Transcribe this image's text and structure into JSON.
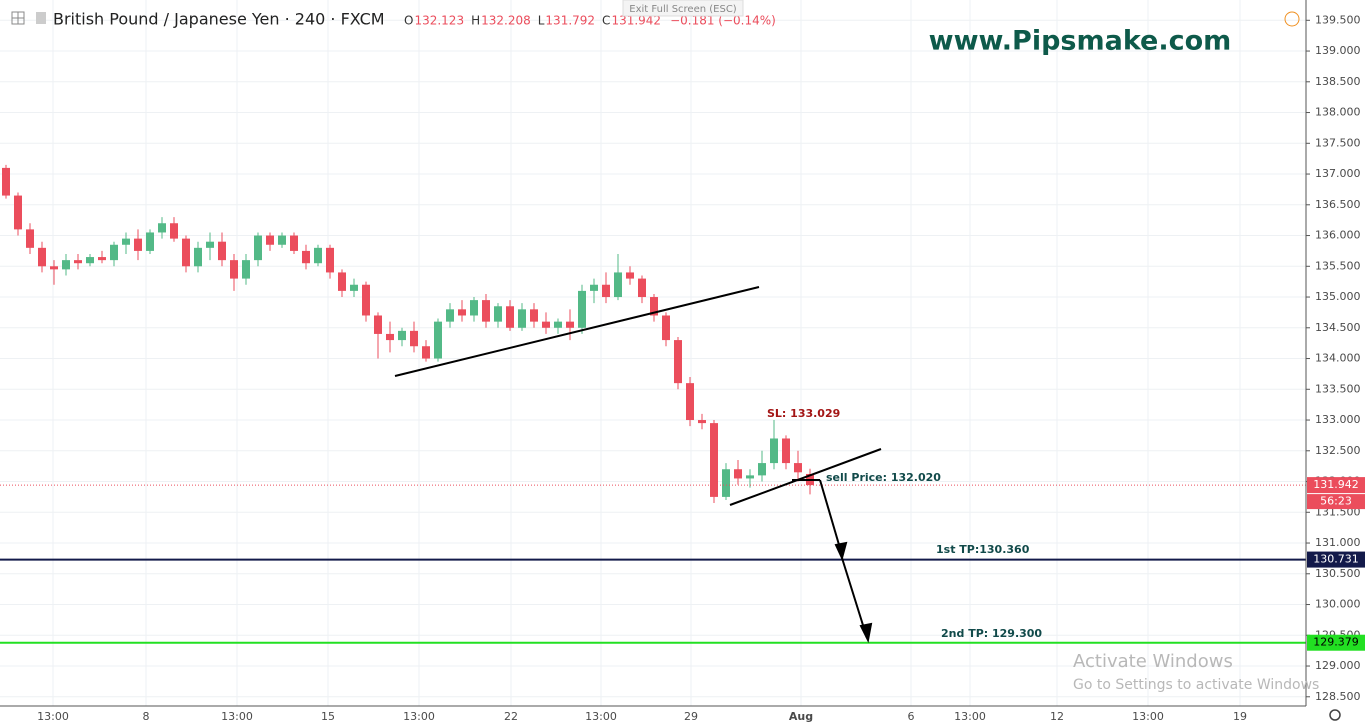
{
  "chart_data": {
    "type": "candlestick",
    "symbol": "British Pound / Japanese Yen · 240 · FXCM",
    "legend": [
      {
        "key": "O",
        "value": 132.123
      },
      {
        "key": "H",
        "value": 132.208
      },
      {
        "key": "L",
        "value": 131.792
      },
      {
        "key": "C",
        "value": 131.942
      }
    ],
    "change": "−0.181 (−0.14%)",
    "up_color": "#53b987",
    "down_color": "#eb4d5c",
    "candles": [
      {
        "o": 137.1,
        "h": 137.15,
        "l": 136.6,
        "c": 136.65
      },
      {
        "o": 136.65,
        "h": 136.7,
        "l": 136.0,
        "c": 136.1
      },
      {
        "o": 136.1,
        "h": 136.2,
        "l": 135.7,
        "c": 135.8
      },
      {
        "o": 135.8,
        "h": 135.9,
        "l": 135.4,
        "c": 135.5
      },
      {
        "o": 135.5,
        "h": 135.6,
        "l": 135.2,
        "c": 135.45
      },
      {
        "o": 135.45,
        "h": 135.7,
        "l": 135.35,
        "c": 135.6
      },
      {
        "o": 135.6,
        "h": 135.7,
        "l": 135.45,
        "c": 135.55
      },
      {
        "o": 135.55,
        "h": 135.7,
        "l": 135.5,
        "c": 135.65
      },
      {
        "o": 135.65,
        "h": 135.75,
        "l": 135.55,
        "c": 135.6
      },
      {
        "o": 135.6,
        "h": 135.9,
        "l": 135.5,
        "c": 135.85
      },
      {
        "o": 135.85,
        "h": 136.05,
        "l": 135.7,
        "c": 135.95
      },
      {
        "o": 135.95,
        "h": 136.1,
        "l": 135.6,
        "c": 135.75
      },
      {
        "o": 135.75,
        "h": 136.1,
        "l": 135.7,
        "c": 136.05
      },
      {
        "o": 136.05,
        "h": 136.3,
        "l": 135.95,
        "c": 136.2
      },
      {
        "o": 136.2,
        "h": 136.3,
        "l": 135.9,
        "c": 135.95
      },
      {
        "o": 135.95,
        "h": 136.0,
        "l": 135.4,
        "c": 135.5
      },
      {
        "o": 135.5,
        "h": 135.9,
        "l": 135.4,
        "c": 135.8
      },
      {
        "o": 135.8,
        "h": 136.05,
        "l": 135.6,
        "c": 135.9
      },
      {
        "o": 135.9,
        "h": 136.05,
        "l": 135.5,
        "c": 135.6
      },
      {
        "o": 135.6,
        "h": 135.7,
        "l": 135.1,
        "c": 135.3
      },
      {
        "o": 135.3,
        "h": 135.7,
        "l": 135.2,
        "c": 135.6
      },
      {
        "o": 135.6,
        "h": 136.05,
        "l": 135.5,
        "c": 136.0
      },
      {
        "o": 136.0,
        "h": 136.05,
        "l": 135.75,
        "c": 135.85
      },
      {
        "o": 135.85,
        "h": 136.05,
        "l": 135.8,
        "c": 136.0
      },
      {
        "o": 136.0,
        "h": 136.05,
        "l": 135.7,
        "c": 135.75
      },
      {
        "o": 135.75,
        "h": 135.85,
        "l": 135.45,
        "c": 135.55
      },
      {
        "o": 135.55,
        "h": 135.85,
        "l": 135.5,
        "c": 135.8
      },
      {
        "o": 135.8,
        "h": 135.85,
        "l": 135.3,
        "c": 135.4
      },
      {
        "o": 135.4,
        "h": 135.45,
        "l": 135.0,
        "c": 135.1
      },
      {
        "o": 135.1,
        "h": 135.3,
        "l": 135.0,
        "c": 135.2
      },
      {
        "o": 135.2,
        "h": 135.25,
        "l": 134.6,
        "c": 134.7
      },
      {
        "o": 134.7,
        "h": 134.75,
        "l": 134.0,
        "c": 134.4
      },
      {
        "o": 134.4,
        "h": 134.6,
        "l": 134.1,
        "c": 134.3
      },
      {
        "o": 134.3,
        "h": 134.5,
        "l": 134.2,
        "c": 134.45
      },
      {
        "o": 134.45,
        "h": 134.6,
        "l": 134.1,
        "c": 134.2
      },
      {
        "o": 134.2,
        "h": 134.3,
        "l": 133.95,
        "c": 134.0
      },
      {
        "o": 134.0,
        "h": 134.65,
        "l": 133.95,
        "c": 134.6
      },
      {
        "o": 134.6,
        "h": 134.9,
        "l": 134.5,
        "c": 134.8
      },
      {
        "o": 134.8,
        "h": 134.95,
        "l": 134.6,
        "c": 134.7
      },
      {
        "o": 134.7,
        "h": 135.0,
        "l": 134.6,
        "c": 134.95
      },
      {
        "o": 134.95,
        "h": 135.05,
        "l": 134.5,
        "c": 134.6
      },
      {
        "o": 134.6,
        "h": 134.9,
        "l": 134.5,
        "c": 134.85
      },
      {
        "o": 134.85,
        "h": 134.95,
        "l": 134.45,
        "c": 134.5
      },
      {
        "o": 134.5,
        "h": 134.9,
        "l": 134.45,
        "c": 134.8
      },
      {
        "o": 134.8,
        "h": 134.9,
        "l": 134.5,
        "c": 134.6
      },
      {
        "o": 134.6,
        "h": 134.75,
        "l": 134.4,
        "c": 134.5
      },
      {
        "o": 134.5,
        "h": 134.65,
        "l": 134.4,
        "c": 134.6
      },
      {
        "o": 134.6,
        "h": 134.8,
        "l": 134.3,
        "c": 134.5
      },
      {
        "o": 134.5,
        "h": 135.2,
        "l": 134.4,
        "c": 135.1
      },
      {
        "o": 135.1,
        "h": 135.3,
        "l": 134.9,
        "c": 135.2
      },
      {
        "o": 135.2,
        "h": 135.4,
        "l": 134.9,
        "c": 135.0
      },
      {
        "o": 135.0,
        "h": 135.7,
        "l": 134.95,
        "c": 135.4
      },
      {
        "o": 135.4,
        "h": 135.5,
        "l": 135.2,
        "c": 135.3
      },
      {
        "o": 135.3,
        "h": 135.35,
        "l": 134.9,
        "c": 135.0
      },
      {
        "o": 135.0,
        "h": 135.05,
        "l": 134.6,
        "c": 134.7
      },
      {
        "o": 134.7,
        "h": 134.75,
        "l": 134.2,
        "c": 134.3
      },
      {
        "o": 134.3,
        "h": 134.35,
        "l": 133.5,
        "c": 133.6
      },
      {
        "o": 133.6,
        "h": 133.7,
        "l": 132.9,
        "c": 133.0
      },
      {
        "o": 133.0,
        "h": 133.1,
        "l": 132.85,
        "c": 132.95
      },
      {
        "o": 132.95,
        "h": 133.0,
        "l": 131.65,
        "c": 131.75
      },
      {
        "o": 131.75,
        "h": 132.3,
        "l": 131.7,
        "c": 132.2
      },
      {
        "o": 132.2,
        "h": 132.35,
        "l": 131.95,
        "c": 132.05
      },
      {
        "o": 132.05,
        "h": 132.2,
        "l": 131.9,
        "c": 132.1
      },
      {
        "o": 132.1,
        "h": 132.5,
        "l": 132.0,
        "c": 132.3
      },
      {
        "o": 132.3,
        "h": 133.0,
        "l": 132.2,
        "c": 132.7
      },
      {
        "o": 132.7,
        "h": 132.75,
        "l": 132.2,
        "c": 132.3
      },
      {
        "o": 132.3,
        "h": 132.5,
        "l": 132.0,
        "c": 132.15
      },
      {
        "o": 132.123,
        "h": 132.208,
        "l": 131.792,
        "c": 131.942
      }
    ],
    "ylim": [
      128.35,
      139.83
    ],
    "yticks": [
      {
        "value": 128.5,
        "label": "128.500"
      },
      {
        "value": 129,
        "label": "129.000"
      },
      {
        "value": 129.5,
        "label": "129.500"
      },
      {
        "value": 130,
        "label": "130.000"
      },
      {
        "value": 130.5,
        "label": "130.500"
      },
      {
        "value": 131,
        "label": "131.000"
      },
      {
        "value": 131.5,
        "label": "131.500"
      },
      {
        "value": 132,
        "label": "132.000"
      },
      {
        "value": 132.5,
        "label": "132.500"
      },
      {
        "value": 133,
        "label": "133.000"
      },
      {
        "value": 133.5,
        "label": "133.500"
      },
      {
        "value": 134,
        "label": "134.000"
      },
      {
        "value": 134.5,
        "label": "134.500"
      },
      {
        "value": 135,
        "label": "135.000"
      },
      {
        "value": 135.5,
        "label": "135.500"
      },
      {
        "value": 136,
        "label": "136.000"
      },
      {
        "value": 136.5,
        "label": "136.500"
      },
      {
        "value": 137,
        "label": "137.000"
      },
      {
        "value": 137.5,
        "label": "137.500"
      },
      {
        "value": 138,
        "label": "138.000"
      },
      {
        "value": 138.5,
        "label": "138.500"
      },
      {
        "value": 139,
        "label": "139.000"
      },
      {
        "value": 139.5,
        "label": "139.500"
      }
    ],
    "xticks": [
      "13:00",
      "8",
      "13:00",
      "15",
      "13:00",
      "22",
      "13:00",
      "29",
      "Aug",
      "6",
      "13:00",
      "12",
      "13:00",
      "19"
    ],
    "grid": true,
    "price_lines": [
      {
        "value": 131.942,
        "color": "#eb4d5c",
        "style": "dotted",
        "timer": "56:23"
      },
      {
        "value": 130.731,
        "color": "#131a4a",
        "style": "solid"
      },
      {
        "value": 129.379,
        "color": "#22e022",
        "style": "solid"
      }
    ],
    "annotations": [
      "SL: 133.029",
      "sell Price: 132.020",
      "1st TP:130.360",
      "2nd TP: 129.300"
    ]
  },
  "ui": {
    "exit_fullscreen": "Exit Full Screen (ESC)",
    "watermark": "www.Pipsmake.com",
    "activate_title": "Activate Windows",
    "activate_sub": "Go to Settings to activate Windows"
  }
}
